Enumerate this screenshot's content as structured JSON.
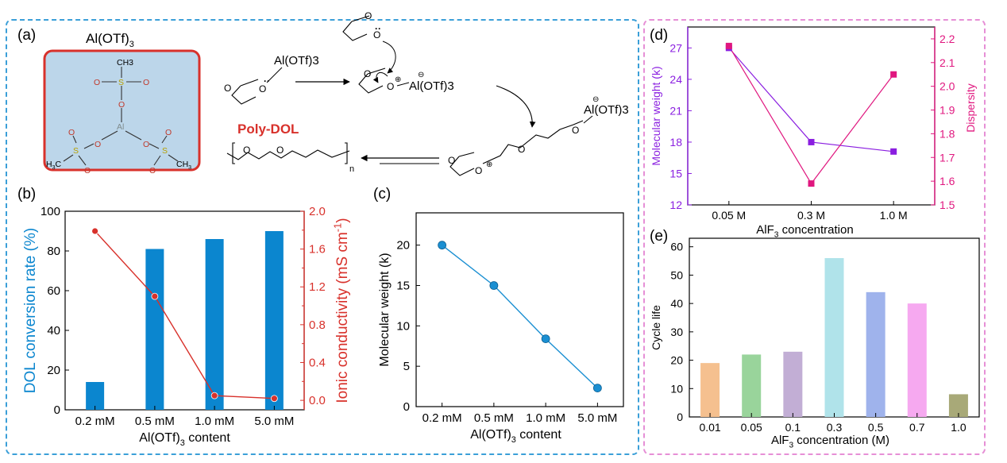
{
  "figure": {
    "colors": {
      "bar_blue": "#0b86cf",
      "line_red": "#d8312b",
      "line_c": "#1a8fd2",
      "purple": "#8a1ee0",
      "magenta": "#e0177f",
      "box_blue": "#3b9fd8",
      "box_pink": "#e68fd6",
      "reaction_red": "#d8312b",
      "lightblue_fill": "#bcd6ea"
    },
    "panel_a": {
      "label": "(a)",
      "catalyst_title": "Al(OTf)3",
      "catalyst_atoms": {
        "ch3_top": "CH3",
        "s": "S",
        "o": "O",
        "al": "Al",
        "h3c_left": "H3C",
        "ch3_right": "CH3"
      },
      "reagent_1": "Al(OTf)3",
      "intermediate_anion": "Al(OTf)3",
      "chain_anion": "Al(OTf)3",
      "product_label": "Poly-DOL",
      "repeat_index": "n",
      "ring_O": "O",
      "plus": "⊕",
      "minus": "⊖",
      "lone_pair": "··"
    }
  },
  "chart_data": [
    {
      "panel": "(b)",
      "type": "bar",
      "categories": [
        "0.2 mM",
        "0.5 mM",
        "1.0 mM",
        "5.0 mM"
      ],
      "xlabel": "Al(OTf)3 content",
      "ylabel": "DOL conversion rate (%)",
      "ylim": [
        0,
        100
      ],
      "yticks": [
        "0",
        "20",
        "40",
        "60",
        "80",
        "100"
      ],
      "values": [
        14,
        81,
        86,
        90
      ],
      "y2label": "Ionic conductivity (mS cm-1)",
      "y2lim": [
        -0.1,
        2.0
      ],
      "y2ticks": [
        "0.0",
        "0.4",
        "0.8",
        "1.2",
        "1.6",
        "2.0"
      ],
      "y2minorticks": [
        "0.2",
        "0.6",
        "1.0",
        "1.4",
        "1.8"
      ],
      "series": [
        {
          "type": "bar",
          "axis": "left",
          "values": [
            14,
            81,
            86,
            90
          ]
        },
        {
          "type": "line",
          "axis": "right",
          "values": [
            1.79,
            1.1,
            0.05,
            0.02
          ]
        }
      ]
    },
    {
      "panel": "(c)",
      "type": "line",
      "categories": [
        "0.2 mM",
        "0.5 mM",
        "1.0 mM",
        "5.0 mM"
      ],
      "xlabel": "Al(OTf)3 content",
      "ylabel": "Molecular weight (k)",
      "ylim": [
        0,
        24
      ],
      "yticks": [
        "0",
        "5",
        "10",
        "15",
        "20"
      ],
      "series": [
        {
          "values": [
            20,
            15,
            8.4,
            2.3
          ]
        }
      ]
    },
    {
      "panel": "(d)",
      "type": "line",
      "categories": [
        "0.05 M",
        "0.3 M",
        "1.0 M"
      ],
      "xlabel": "AlF3 concentration",
      "ylabel": "Molecular weight (k)",
      "ylim": [
        12,
        29
      ],
      "yticks": [
        "12",
        "15",
        "18",
        "21",
        "24",
        "27"
      ],
      "y2label": "Dispersity",
      "y2lim": [
        1.5,
        2.25
      ],
      "y2ticks": [
        "1.5",
        "1.6",
        "1.7",
        "1.8",
        "1.9",
        "2.0",
        "2.1",
        "2.2"
      ],
      "series": [
        {
          "axis": "left",
          "marker": "square",
          "values": [
            27.0,
            18.0,
            17.1
          ]
        },
        {
          "axis": "right",
          "marker": "square",
          "values": [
            2.17,
            1.59,
            2.05
          ]
        }
      ]
    },
    {
      "panel": "(e)",
      "type": "bar",
      "categories": [
        "0.01",
        "0.05",
        "0.1",
        "0.3",
        "0.5",
        "0.7",
        "1.0"
      ],
      "xlabel": "AlF3 concentration (M)",
      "ylabel": "Cycle life",
      "ylim": [
        0,
        63
      ],
      "yticks": [
        "0",
        "10",
        "20",
        "30",
        "40",
        "50",
        "60"
      ],
      "values": [
        19,
        22,
        23,
        56,
        44,
        40,
        8
      ],
      "bar_colors": [
        "#f5c08f",
        "#99d49b",
        "#c2aed5",
        "#b0e3ea",
        "#9fb3ec",
        "#f6a9f0",
        "#a8a978"
      ]
    }
  ]
}
